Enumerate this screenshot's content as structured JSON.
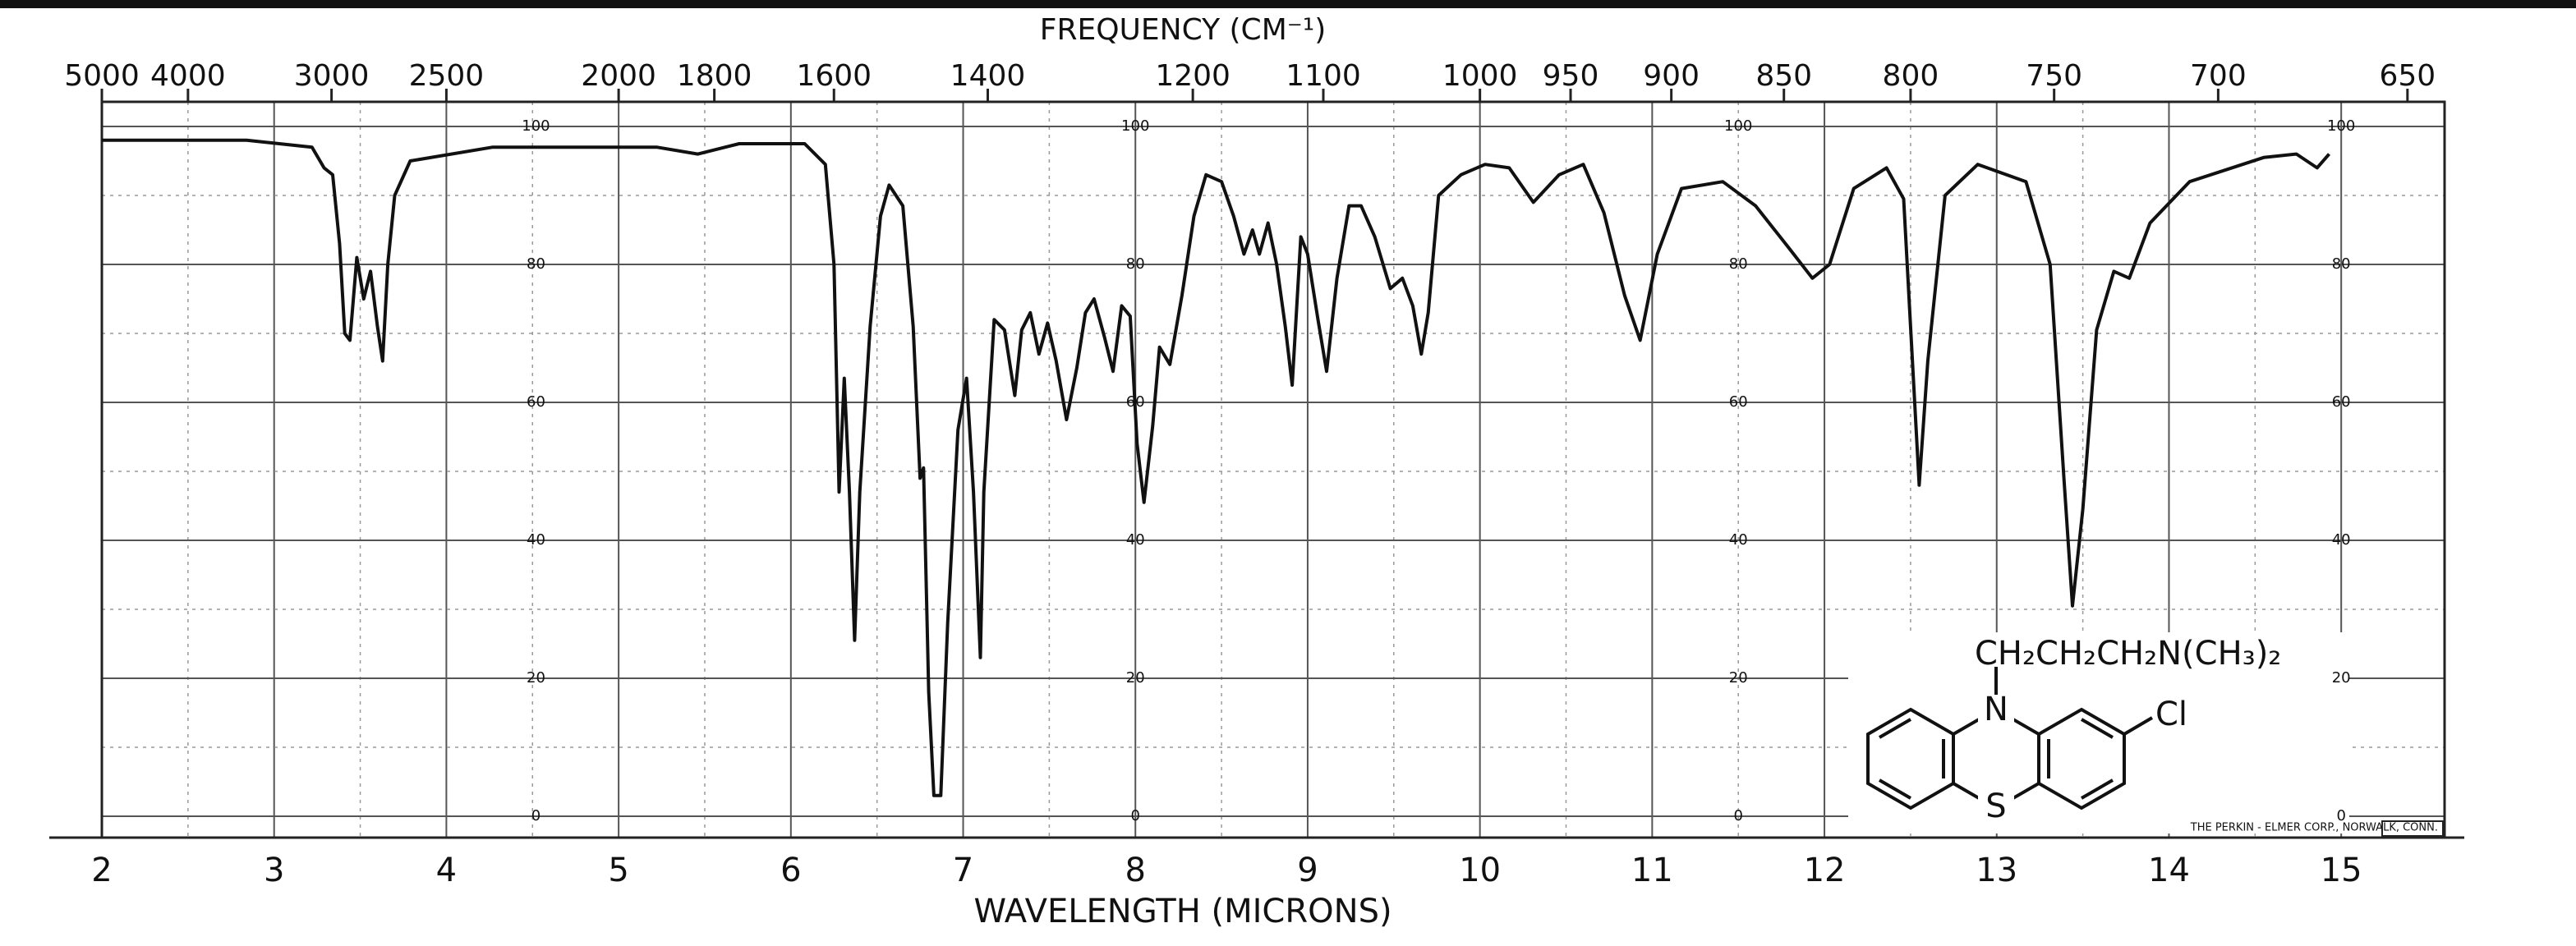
{
  "chart_data": {
    "type": "line",
    "title": "FREQUENCY (CM⁻¹)",
    "xlabel": "WAVELENGTH (MICRONS)",
    "x": [
      2.0,
      2.84,
      3.22,
      3.29,
      3.34,
      3.38,
      3.41,
      3.44,
      3.48,
      3.52,
      3.56,
      3.6,
      3.63,
      3.66,
      3.7,
      3.79,
      4.27,
      5.22,
      5.46,
      5.7,
      6.08,
      6.2,
      6.25,
      6.28,
      6.31,
      6.34,
      6.37,
      6.4,
      6.46,
      6.52,
      6.57,
      6.65,
      6.71,
      6.75,
      6.77,
      6.8,
      6.83,
      6.87,
      6.91,
      6.97,
      7.02,
      7.06,
      7.1,
      7.12,
      7.18,
      7.24,
      7.3,
      7.34,
      7.39,
      7.44,
      7.49,
      7.54,
      7.6,
      7.66,
      7.71,
      7.76,
      7.82,
      7.87,
      7.92,
      7.97,
      8.01,
      8.05,
      8.1,
      8.14,
      8.2,
      8.27,
      8.34,
      8.41,
      8.5,
      8.57,
      8.63,
      8.68,
      8.72,
      8.77,
      8.82,
      8.87,
      8.91,
      8.96,
      9.0,
      9.06,
      9.11,
      9.17,
      9.24,
      9.31,
      9.39,
      9.48,
      9.55,
      9.61,
      9.66,
      9.7,
      9.76,
      9.89,
      10.03,
      10.17,
      10.31,
      10.46,
      10.6,
      10.72,
      10.84,
      10.93,
      11.03,
      11.17,
      11.41,
      11.6,
      11.79,
      11.93,
      12.03,
      12.17,
      12.36,
      12.46,
      12.5,
      12.55,
      12.6,
      12.7,
      12.89,
      13.17,
      13.31,
      13.39,
      13.44,
      13.5,
      13.58,
      13.68,
      13.77,
      13.89,
      14.12,
      14.55,
      14.74,
      14.86,
      14.93
    ],
    "values": [
      98,
      98,
      97,
      94,
      93,
      83,
      70,
      69,
      81,
      75,
      79,
      71,
      66,
      80,
      90,
      95,
      97,
      97,
      96,
      97.5,
      97.5,
      94.5,
      80,
      47,
      63.5,
      47,
      25.5,
      47,
      71,
      87,
      91.5,
      88.5,
      71,
      49,
      50.5,
      18,
      3,
      3,
      28,
      56,
      63.5,
      47,
      23,
      47,
      72,
      70.5,
      61,
      70.5,
      73,
      67,
      71.5,
      66,
      57.5,
      65,
      73,
      75,
      69.5,
      64.5,
      74,
      72.5,
      54,
      45.5,
      56.5,
      68,
      65.5,
      75.5,
      87,
      93,
      92,
      87,
      81.5,
      85,
      81.5,
      86,
      80,
      71,
      62.5,
      84,
      81.5,
      72,
      64.5,
      78,
      88.5,
      88.5,
      84,
      76.5,
      78,
      74,
      67,
      73,
      90,
      93,
      94.5,
      94,
      89,
      93,
      94.5,
      87.5,
      75.5,
      69,
      81.5,
      91,
      92,
      88.5,
      82.5,
      78,
      80,
      91,
      94,
      89.5,
      71,
      48,
      66,
      90,
      94.5,
      92,
      80,
      49,
      30.5,
      44.5,
      70.5,
      79,
      78,
      86,
      92,
      95.5,
      96,
      94,
      96
    ],
    "color": "#111111",
    "xlim": [
      2,
      15.6
    ],
    "xticks": [
      2,
      3,
      4,
      5,
      6,
      7,
      8,
      9,
      10,
      11,
      12,
      13,
      14,
      15
    ],
    "ylim": [
      0,
      100
    ],
    "yticks": [
      0,
      20,
      40,
      60,
      80,
      100
    ],
    "x2ticks": [
      5000,
      4000,
      3000,
      2500,
      2000,
      1800,
      1600,
      1400,
      1200,
      1100,
      1000,
      950,
      900,
      850,
      800,
      750,
      700,
      650
    ],
    "grid": true,
    "annotations": {
      "substituent": "CH₂CH₂CH₂N(CH₃)₂",
      "n": "N",
      "s": "S",
      "cl": "Cl",
      "credit": "THE PERKIN - ELMER CORP., NORWALK, CONN."
    }
  }
}
